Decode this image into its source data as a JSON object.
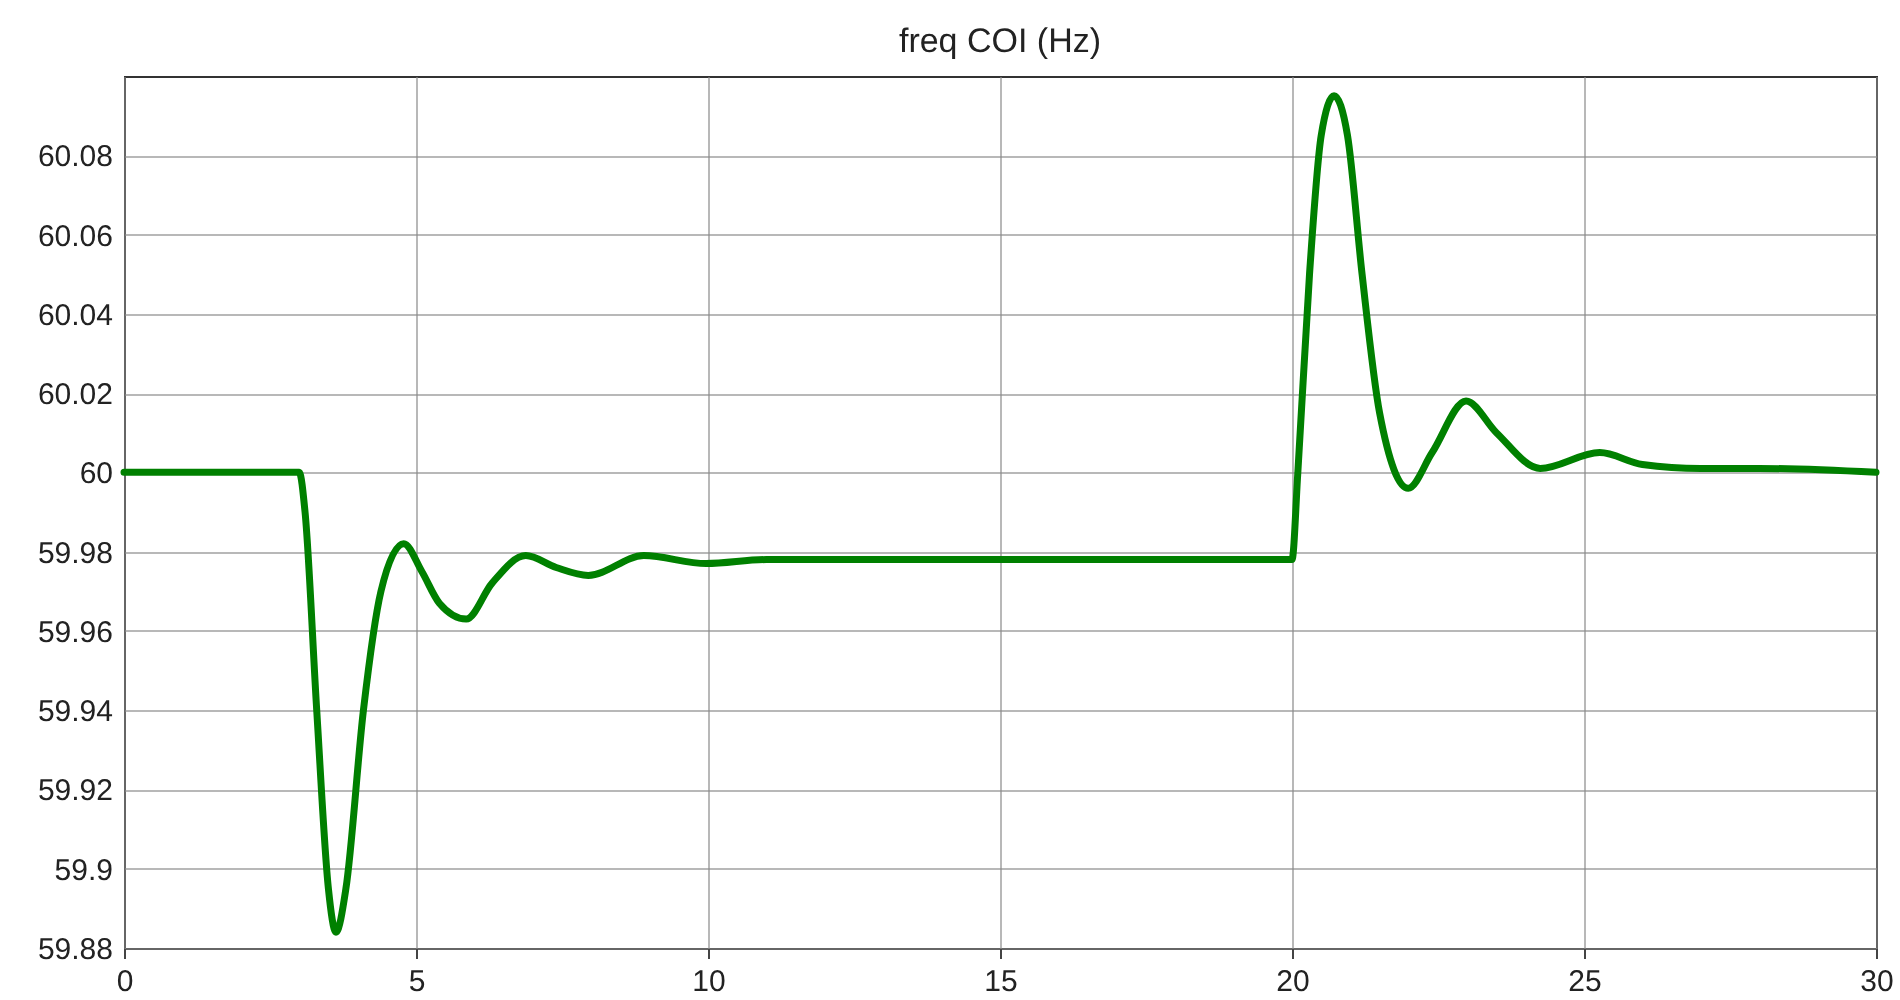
{
  "chart_data": {
    "type": "line",
    "title": "freq COI (Hz)",
    "x": [
      0,
      3.0,
      3.1,
      3.3,
      3.5,
      3.63,
      3.8,
      4.1,
      4.4,
      4.79,
      5.1,
      5.4,
      5.86,
      6.3,
      6.88,
      7.4,
      7.95,
      8.9,
      9.97,
      11,
      13,
      15,
      20,
      20.1,
      20.3,
      20.5,
      20.72,
      20.95,
      21.2,
      21.5,
      21.99,
      22.4,
      22.98,
      23.5,
      24.25,
      25.27,
      26,
      27,
      28,
      30
    ],
    "series": [
      {
        "color": "#008000",
        "values": [
          60,
          60,
          59.99,
          59.94,
          59.895,
          59.884,
          59.895,
          59.94,
          59.97,
          59.982,
          59.975,
          59.967,
          59.963,
          59.972,
          59.979,
          59.976,
          59.974,
          59.979,
          59.977,
          59.978,
          59.978,
          59.978,
          59.978,
          60.0,
          60.05,
          60.085,
          60.095,
          60.085,
          60.05,
          60.015,
          59.996,
          60.005,
          60.018,
          60.01,
          60.001,
          60.005,
          60.002,
          60.001,
          60.001,
          60
        ]
      }
    ],
    "xlim": [
      0,
      30
    ],
    "xticks": [
      0,
      5,
      10,
      15,
      20,
      25,
      30
    ],
    "ylim": [
      59.88,
      60.1
    ],
    "yticks": [
      59.88,
      59.9,
      59.92,
      59.94,
      59.96,
      59.98,
      60,
      60.02,
      60.04,
      60.06,
      60.08
    ],
    "grid": true,
    "marker": "none",
    "line_style": "solid"
  }
}
